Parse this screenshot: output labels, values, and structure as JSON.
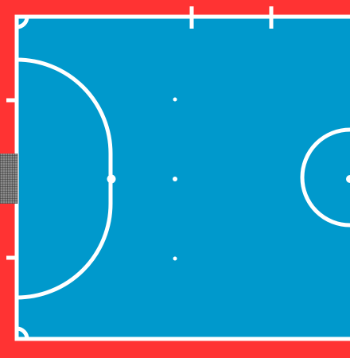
{
  "diagram": {
    "type": "futsal-half-court",
    "colors": {
      "border": "#FF3333",
      "playing_surface": "#0099CC",
      "lines": "#FFFFFF",
      "goal_net": "#3a3a3a"
    },
    "markings": {
      "penalty_area": "semicircular",
      "penalty_spot": true,
      "second_penalty_spot": true,
      "reference_dots": 2,
      "corner_arcs": 2,
      "substitution_zone_marks": 2,
      "goal_side_marks": 2,
      "center_circle_partial": true,
      "goal_net": true
    }
  }
}
